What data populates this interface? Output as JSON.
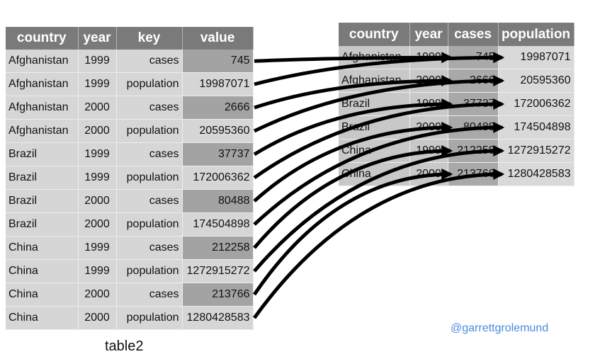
{
  "left_table": {
    "caption": "table2",
    "headers": [
      "country",
      "year",
      "key",
      "value"
    ],
    "rows": [
      {
        "country": "Afghanistan",
        "year": "1999",
        "key": "cases",
        "value": "745"
      },
      {
        "country": "Afghanistan",
        "year": "1999",
        "key": "population",
        "value": "19987071"
      },
      {
        "country": "Afghanistan",
        "year": "2000",
        "key": "cases",
        "value": "2666"
      },
      {
        "country": "Afghanistan",
        "year": "2000",
        "key": "population",
        "value": "20595360"
      },
      {
        "country": "Brazil",
        "year": "1999",
        "key": "cases",
        "value": "37737"
      },
      {
        "country": "Brazil",
        "year": "1999",
        "key": "population",
        "value": "172006362"
      },
      {
        "country": "Brazil",
        "year": "2000",
        "key": "cases",
        "value": "80488"
      },
      {
        "country": "Brazil",
        "year": "2000",
        "key": "population",
        "value": "174504898"
      },
      {
        "country": "China",
        "year": "1999",
        "key": "cases",
        "value": "212258"
      },
      {
        "country": "China",
        "year": "1999",
        "key": "population",
        "value": "1272915272"
      },
      {
        "country": "China",
        "year": "2000",
        "key": "cases",
        "value": "213766"
      },
      {
        "country": "China",
        "year": "2000",
        "key": "population",
        "value": "1280428583"
      }
    ]
  },
  "right_table": {
    "headers": [
      "country",
      "year",
      "cases",
      "population"
    ],
    "rows": [
      {
        "country": "Afghanistan",
        "year": "1999",
        "cases": "745",
        "population": "19987071"
      },
      {
        "country": "Afghanistan",
        "year": "2000",
        "cases": "2666",
        "population": "20595360"
      },
      {
        "country": "Brazil",
        "year": "1999",
        "cases": "37737",
        "population": "172006362"
      },
      {
        "country": "Brazil",
        "year": "2000",
        "cases": "80488",
        "population": "174504898"
      },
      {
        "country": "China",
        "year": "1999",
        "cases": "212258",
        "population": "1272915272"
      },
      {
        "country": "China",
        "year": "2000",
        "cases": "213766",
        "population": "1280428583"
      }
    ]
  },
  "credit": "@garrettgrolemund",
  "colors": {
    "header_bg": "#7a7a7a",
    "cell_bg": "#d6d6d6",
    "highlight_bg": "#a3a3a3",
    "arrow": "#000000",
    "credit_text": "#4a8ae0"
  }
}
